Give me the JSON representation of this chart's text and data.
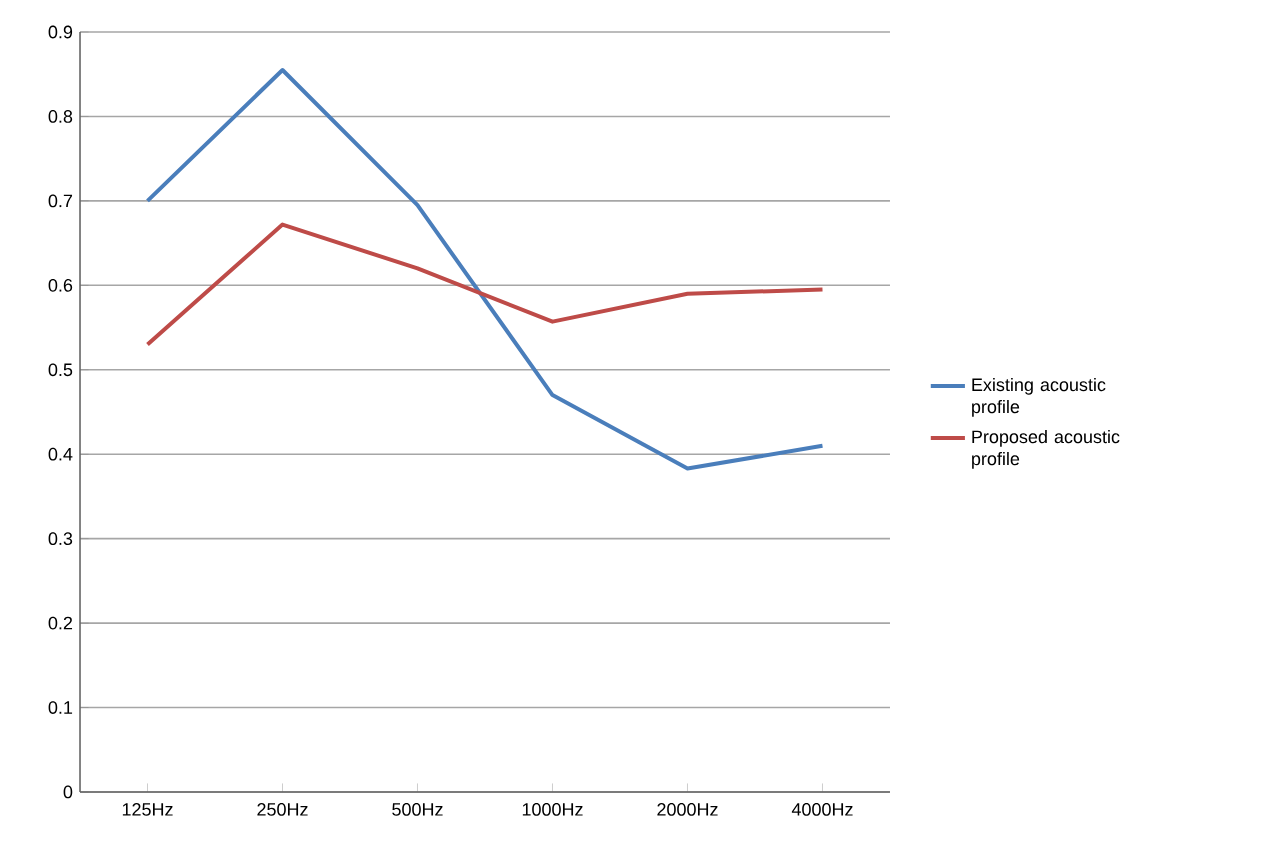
{
  "chart_data": {
    "type": "line",
    "categories": [
      "125Hz",
      "250Hz",
      "500Hz",
      "1000Hz",
      "2000Hz",
      "4000Hz"
    ],
    "series": [
      {
        "name": "Existing acoustic profile",
        "color": "#4a7ebb",
        "values": [
          0.7,
          0.855,
          0.695,
          0.47,
          0.383,
          0.41
        ]
      },
      {
        "name": "Proposed acoustic profile",
        "color": "#be4b48",
        "values": [
          0.53,
          0.672,
          0.62,
          0.557,
          0.59,
          0.595
        ]
      }
    ],
    "ylim": [
      0,
      0.9
    ],
    "yticks": [
      0,
      0.1,
      0.2,
      0.3,
      0.4,
      0.5,
      0.6,
      0.7,
      0.8,
      0.9
    ],
    "grid": "y",
    "legend": "right",
    "marker": "none",
    "line_style": "solid"
  }
}
